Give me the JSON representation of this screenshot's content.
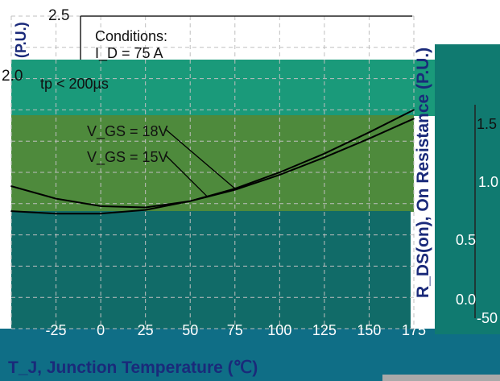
{
  "chart_data": {
    "type": "line",
    "xlabel": "T_J, Junction Temperature (℃)",
    "ylabel_left": "(P.U.)",
    "ylabel_right": "R_DS(on), On Resistance (P.U.)",
    "xlim": [
      -50,
      175
    ],
    "ylim": [
      0.0,
      2.5
    ],
    "x_ticks": [
      "-25",
      "0",
      "25",
      "50",
      "75",
      "100",
      "125",
      "150",
      "175"
    ],
    "y_ticks_left": [
      "2.5",
      "2.0"
    ],
    "y_ticks_right": [
      "1.5",
      "1.0",
      "0.5",
      "0.0"
    ],
    "right_axis_bottom_tick": "-50",
    "annotations": {
      "conditions": "Conditions:",
      "id_line": "I_D = 75 A",
      "tp_line": "tp < 200µs"
    },
    "series": [
      {
        "name": "V_GS = 18V",
        "x": [
          -50,
          -25,
          0,
          25,
          50,
          75,
          100,
          125,
          150,
          175
        ],
        "values": [
          0.94,
          0.92,
          0.92,
          0.95,
          1.02,
          1.12,
          1.25,
          1.4,
          1.57,
          1.75
        ]
      },
      {
        "name": "V_GS = 15V",
        "x": [
          -50,
          -25,
          0,
          25,
          50,
          75,
          100,
          125,
          150,
          175
        ],
        "values": [
          1.14,
          1.04,
          0.98,
          0.97,
          1.02,
          1.11,
          1.23,
          1.37,
          1.52,
          1.68
        ]
      }
    ],
    "grid": true
  },
  "colors": {
    "line": "#000000",
    "text_dark": "#111111",
    "text_light": "#ffffff",
    "axis_label_blue": "#1a2a7a"
  }
}
